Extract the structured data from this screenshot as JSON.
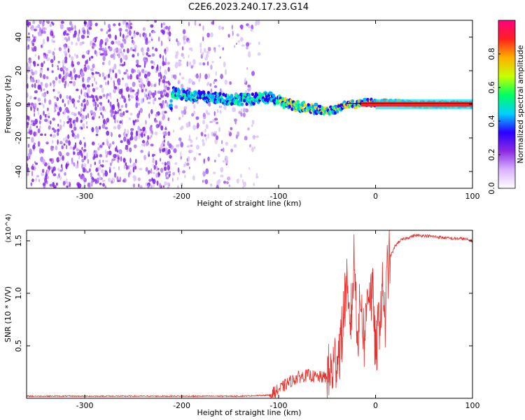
{
  "title": "C2E6.2023.240.17.23.G14",
  "colors": {
    "snr_line": "#e8312c",
    "ridge_line": "#000000",
    "spectro_dots": "#8a2be2"
  },
  "chart_data": [
    {
      "type": "heatmap",
      "title": "C2E6.2023.240.17.23.G14",
      "xlabel": "Height of straight line (km)",
      "ylabel": "Frequency (Hz)",
      "xlim": [
        -360,
        100
      ],
      "ylim": [
        -50,
        50
      ],
      "xticks": [
        -300,
        -200,
        -100,
        0,
        100
      ],
      "yticks": [
        -40,
        -20,
        0,
        20,
        40
      ],
      "xtick_labels": [
        "-300",
        "-200",
        "-100",
        "0",
        "100"
      ],
      "ytick_labels": [
        "-40",
        "-20",
        "0",
        "20",
        "40"
      ],
      "colorbar": {
        "label": "Normalized spectral amplitude",
        "range": [
          0.0,
          1.0
        ],
        "ticks": [
          0.0,
          0.2,
          0.4,
          0.6,
          0.8
        ],
        "tick_labels": [
          "0.0",
          "0.2",
          "0.4",
          "0.6",
          "0.8"
        ],
        "colormap": [
          "#ffffff",
          "#d9b3ff",
          "#8a2be2",
          "#2a00ff",
          "#00d0ff",
          "#00ff60",
          "#c8ff00",
          "#ffb000",
          "#ff2020",
          "#ff0080"
        ]
      },
      "signal_ridge": {
        "x": [
          -210,
          -190,
          -170,
          -150,
          -130,
          -110,
          -90,
          -70,
          -50,
          -40,
          -30,
          -20,
          -10,
          0,
          20,
          50,
          80,
          100
        ],
        "y": [
          7,
          5,
          4,
          3,
          3,
          4,
          0,
          -2,
          -4,
          -3,
          0,
          0,
          1,
          1,
          1,
          0,
          0,
          0
        ]
      }
    },
    {
      "type": "line",
      "xlabel": "Height of straight line (km)",
      "ylabel": "SNR (10 * V/V)",
      "y_multiplier": "(x10^4)",
      "xlim": [
        -360,
        100
      ],
      "ylim": [
        0,
        1.6
      ],
      "xticks": [
        -300,
        -200,
        -100,
        0,
        100
      ],
      "yticks": [
        0.5,
        1.0,
        1.5
      ],
      "xtick_labels": [
        "-300",
        "-200",
        "-100",
        "0",
        "100"
      ],
      "ytick_labels": [
        "0.5",
        "1.0",
        "1.5"
      ],
      "series": [
        {
          "x": [
            -360,
            -300,
            -200,
            -140,
            -110,
            -100,
            -90,
            -80,
            -70,
            -60,
            -50,
            -45,
            -40,
            -35,
            -32,
            -30,
            -28,
            -25,
            -22,
            -20,
            -18,
            -15,
            -12,
            -10,
            -8,
            -5,
            -2,
            0,
            2,
            5,
            8,
            10,
            12,
            15,
            18,
            20,
            25,
            30,
            40,
            50,
            60,
            70,
            80,
            90,
            100
          ],
          "y": [
            0.02,
            0.02,
            0.02,
            0.02,
            0.03,
            0.08,
            0.15,
            0.2,
            0.22,
            0.2,
            0.2,
            0.25,
            0.4,
            0.55,
            0.9,
            1.1,
            0.7,
            0.8,
            1.35,
            0.9,
            0.6,
            1.0,
            0.55,
            0.7,
            1.1,
            1.0,
            0.9,
            0.35,
            0.6,
            0.85,
            1.05,
            0.7,
            1.2,
            1.35,
            1.4,
            1.45,
            1.5,
            1.52,
            1.55,
            1.55,
            1.54,
            1.53,
            1.52,
            1.52,
            1.5
          ]
        }
      ]
    }
  ]
}
